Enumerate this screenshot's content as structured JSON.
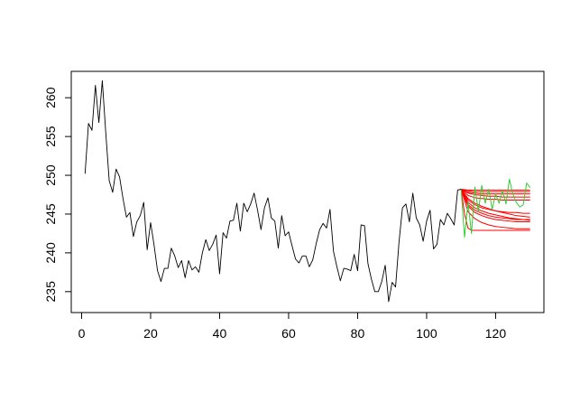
{
  "chart_data": {
    "type": "line",
    "title": "",
    "xlabel": "",
    "ylabel": "",
    "xlim": [
      -3,
      134
    ],
    "ylim": [
      232.3,
      263.4
    ],
    "x_ticks": [
      0,
      20,
      40,
      60,
      80,
      100,
      120
    ],
    "x_tick_labels": [
      "0",
      "20",
      "40",
      "60",
      "80",
      "100",
      "120"
    ],
    "y_ticks": [
      235,
      240,
      245,
      250,
      255,
      260
    ],
    "y_tick_labels": [
      "235",
      "240",
      "245",
      "250",
      "255",
      "260"
    ],
    "grid": false,
    "legend": "none",
    "colors": {
      "observed": "#000000",
      "forecast": "#ff0000",
      "simulated": "#33cc33",
      "frame": "#000000"
    },
    "series": [
      {
        "role": "observed",
        "color": "#000000",
        "x": [
          1,
          2,
          3,
          4,
          5,
          6,
          7,
          8,
          9,
          10,
          11,
          12,
          13,
          14,
          15,
          16,
          17,
          18,
          19,
          20,
          21,
          22,
          23,
          24,
          25,
          26,
          27,
          28,
          29,
          30,
          31,
          32,
          33,
          34,
          35,
          36,
          37,
          38,
          39,
          40,
          41,
          42,
          43,
          44,
          45,
          46,
          47,
          48,
          49,
          50,
          51,
          52,
          53,
          54,
          55,
          56,
          57,
          58,
          59,
          60,
          61,
          62,
          63,
          64,
          65,
          66,
          67,
          68,
          69,
          70,
          71,
          72,
          73,
          74,
          75,
          76,
          77,
          78,
          79,
          80,
          81,
          82,
          83,
          84,
          85,
          86,
          87,
          88,
          89,
          90,
          91,
          92,
          93,
          94,
          95,
          96,
          97,
          98,
          99,
          100,
          101,
          102,
          103,
          104,
          105,
          106,
          107,
          108,
          109,
          110
        ],
        "values": [
          250.2,
          256.7,
          255.8,
          261.6,
          256.8,
          262.2,
          255.5,
          249.3,
          247.8,
          250.8,
          249.8,
          247.0,
          244.6,
          245.2,
          242.1,
          244.0,
          244.8,
          246.5,
          240.4,
          243.9,
          241.0,
          237.7,
          236.3,
          238.0,
          238.0,
          240.6,
          239.6,
          238.1,
          239.0,
          236.8,
          239.0,
          237.8,
          238.2,
          237.5,
          240.0,
          241.7,
          240.3,
          241.1,
          242.3,
          237.3,
          242.6,
          241.9,
          244.1,
          244.2,
          246.4,
          242.8,
          246.4,
          245.3,
          246.3,
          247.7,
          245.5,
          243.0,
          245.8,
          247.1,
          244.5,
          244.1,
          240.6,
          244.8,
          242.2,
          242.7,
          240.9,
          239.2,
          238.7,
          239.6,
          239.6,
          238.2,
          239.1,
          241.2,
          243.0,
          243.8,
          243.2,
          245.6,
          240.2,
          238.2,
          236.4,
          238.0,
          237.9,
          237.7,
          239.8,
          237.7,
          243.6,
          243.5,
          238.6,
          236.6,
          235.0,
          235.0,
          236.3,
          238.4,
          233.7,
          236.2,
          235.6,
          241.4,
          245.8,
          246.3,
          244.0,
          247.7,
          244.5,
          243.6,
          241.5,
          244.1,
          245.5,
          240.5,
          241.1,
          244.3,
          243.6,
          245.1,
          244.4,
          243.6,
          248.1,
          248.2
        ]
      },
      {
        "role": "forecast",
        "color": "#ff0000",
        "x": [
          110,
          112,
          114,
          116,
          118,
          120,
          122,
          124,
          126,
          128,
          130
        ],
        "values": [
          248.2,
          247.7,
          247.5,
          247.4,
          247.3,
          247.3,
          247.2,
          247.2,
          247.2,
          247.2,
          247.2
        ]
      },
      {
        "role": "forecast",
        "color": "#ff0000",
        "x": [
          110,
          112,
          114,
          116,
          118,
          120,
          122,
          124,
          126,
          128,
          130
        ],
        "values": [
          248.2,
          247.0,
          246.4,
          246.0,
          245.7,
          245.4,
          245.2,
          245.0,
          244.8,
          244.7,
          244.6
        ]
      },
      {
        "role": "forecast",
        "color": "#ff0000",
        "x": [
          110,
          112,
          114,
          116,
          118,
          120,
          122,
          124,
          126,
          128,
          130
        ],
        "values": [
          248.2,
          246.5,
          245.8,
          245.4,
          245.1,
          244.9,
          244.7,
          244.5,
          244.4,
          244.3,
          244.2
        ]
      },
      {
        "role": "forecast",
        "color": "#ff0000",
        "x": [
          110,
          112,
          114,
          116,
          118,
          120,
          122,
          124,
          126,
          128,
          130
        ],
        "values": [
          248.2,
          246.0,
          245.2,
          244.8,
          244.5,
          244.3,
          244.2,
          244.1,
          244.0,
          244.0,
          244.0
        ]
      },
      {
        "role": "forecast",
        "color": "#ff0000",
        "x": [
          110,
          112,
          114,
          116,
          118,
          120,
          122,
          124,
          126,
          128,
          130
        ],
        "values": [
          248.2,
          245.3,
          244.4,
          243.9,
          243.6,
          243.4,
          243.3,
          243.2,
          243.1,
          243.1,
          243.1
        ]
      },
      {
        "role": "forecast",
        "color": "#ff0000",
        "x": [
          110,
          111,
          112,
          113,
          114,
          116,
          118,
          120,
          122,
          124,
          126,
          128,
          130
        ],
        "values": [
          248.2,
          245.0,
          243.2,
          242.9,
          242.9,
          242.9,
          242.9,
          242.9,
          242.9,
          242.9,
          242.9,
          242.9,
          242.9
        ]
      },
      {
        "role": "forecast",
        "color": "#ff0000",
        "x": [
          110,
          112,
          114,
          116,
          118,
          120,
          122,
          124,
          126,
          128,
          130
        ],
        "values": [
          248.2,
          248.1,
          248.1,
          248.1,
          248.1,
          248.1,
          248.1,
          248.1,
          248.1,
          248.1,
          248.1
        ]
      },
      {
        "role": "forecast",
        "color": "#ff0000",
        "x": [
          110,
          112,
          114,
          116,
          118,
          120,
          122,
          124,
          126,
          128,
          130
        ],
        "values": [
          248.2,
          248.0,
          247.9,
          247.9,
          247.9,
          247.9,
          247.9,
          247.9,
          247.9,
          247.9,
          247.9
        ]
      },
      {
        "role": "forecast",
        "color": "#ff0000",
        "x": [
          110,
          112,
          114,
          116,
          118,
          120,
          122,
          124,
          126,
          128,
          130
        ],
        "values": [
          248.2,
          247.8,
          247.7,
          247.6,
          247.6,
          247.6,
          247.6,
          247.6,
          247.6,
          247.6,
          247.6
        ]
      },
      {
        "role": "forecast",
        "color": "#ff0000",
        "x": [
          110,
          112,
          114,
          116,
          118,
          120,
          122,
          124,
          126,
          128,
          130
        ],
        "values": [
          248.2,
          247.4,
          247.1,
          247.0,
          246.9,
          246.9,
          246.8,
          246.8,
          246.8,
          246.8,
          246.8
        ]
      },
      {
        "role": "forecast",
        "color": "#ff0000",
        "x": [
          110,
          112,
          114,
          116,
          118,
          120,
          122,
          124,
          126,
          128,
          130
        ],
        "values": [
          248.2,
          246.8,
          246.2,
          245.8,
          245.6,
          245.4,
          245.3,
          245.2,
          245.2,
          245.1,
          245.1
        ]
      },
      {
        "role": "forecast",
        "color": "#ff0000",
        "x": [
          110,
          112,
          114,
          116,
          118,
          120,
          122,
          124,
          126,
          128,
          130
        ],
        "values": [
          248.2,
          246.2,
          245.5,
          245.1,
          244.8,
          244.6,
          244.5,
          244.4,
          244.3,
          244.3,
          244.3
        ]
      },
      {
        "role": "simulated",
        "color": "#33cc33",
        "x": [
          110,
          111,
          112,
          113,
          114,
          115,
          116,
          117,
          118,
          119,
          120,
          121,
          122,
          123,
          124,
          125,
          126,
          127,
          128,
          129,
          130
        ],
        "values": [
          248.2,
          242.0,
          246.5,
          242.5,
          248.5,
          245.3,
          248.7,
          246.4,
          248.2,
          245.6,
          247.6,
          246.4,
          248.0,
          246.3,
          249.5,
          247.6,
          246.5,
          245.9,
          246.2,
          249.0,
          248.4
        ]
      }
    ]
  }
}
